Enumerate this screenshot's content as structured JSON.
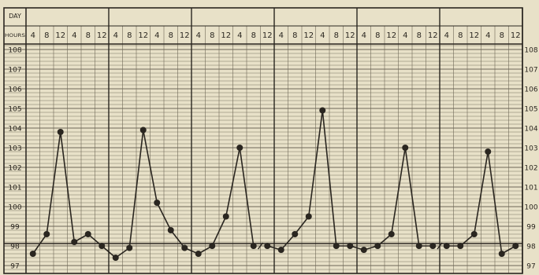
{
  "chart_data": {
    "type": "line",
    "title": "",
    "xlabel": "",
    "ylabel": "",
    "row_labels": {
      "day": "DAY",
      "hours": "HOURS"
    },
    "day_labels": [
      "",
      "",
      "",
      "",
      "",
      ""
    ],
    "hour_ticks": [
      "4",
      "8",
      "12",
      "4",
      "8",
      "12"
    ],
    "y_ticks": [
      108,
      107,
      106,
      105,
      104,
      103,
      102,
      101,
      100,
      99,
      98,
      97
    ],
    "ylim": [
      96.8,
      108.6
    ],
    "normal_line": 98,
    "series": [
      {
        "name": "",
        "x": [
          0,
          1,
          2,
          3,
          4,
          5,
          6,
          7,
          8,
          9,
          10,
          11,
          12,
          13,
          14,
          15,
          16,
          17,
          18,
          19,
          20,
          21,
          22,
          23,
          24,
          25,
          26,
          27,
          28,
          29,
          30,
          31,
          32,
          33,
          34,
          35
        ],
        "values": [
          97.6,
          98.6,
          103.8,
          98.2,
          98.6,
          98.0,
          97.4,
          97.9,
          103.9,
          100.2,
          98.8,
          97.9,
          97.6,
          98.0,
          99.5,
          103.0,
          98.0,
          98.0,
          97.8,
          98.6,
          99.5,
          104.9,
          98.0,
          98.0,
          97.8,
          98.0,
          98.6,
          103.0,
          98.0,
          98.0,
          98.0,
          98.0,
          98.6,
          102.8,
          97.6,
          98.0
        ],
        "segments": [
          [
            0,
            16
          ],
          [
            17,
            29
          ],
          [
            30,
            35
          ]
        ]
      }
    ],
    "colors": {
      "line": "#2a2620",
      "grid": "#6e6858",
      "paper": "#e8e1c8"
    }
  }
}
